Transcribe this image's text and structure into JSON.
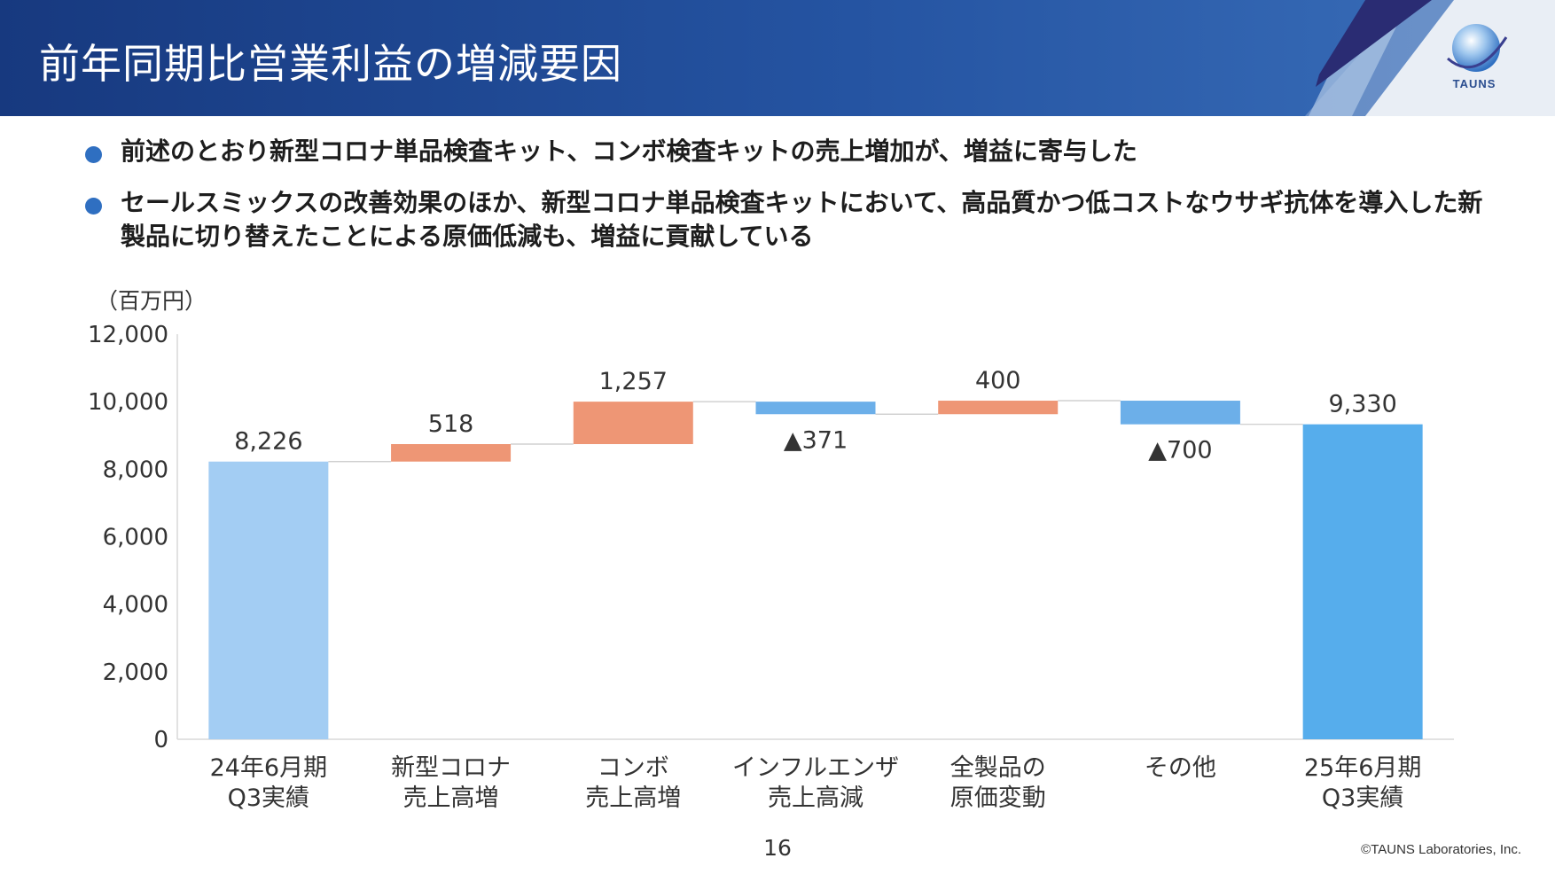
{
  "header": {
    "title": "前年同期比営業利益の増減要因",
    "logo_text": "TAUNS"
  },
  "bullets": [
    "前述のとおり新型コロナ単品検査キット、コンボ検査キットの売上増加が、増益に寄与した",
    "セールスミックスの改善効果のほか、新型コロナ単品検査キットにおいて、高品質かつ低コストなウサギ抗体を導入した新製品に切り替えたことによる原価低減も、増益に貢献している"
  ],
  "colors": {
    "header_start": "#17397f",
    "header_end": "#3a6fba",
    "bullet": "#2f6fc1",
    "start_total": "#a3cdf3",
    "increase": "#ee9675",
    "decrease": "#6cafe9",
    "end_total": "#56adec"
  },
  "chart_data": {
    "type": "waterfall",
    "unit_label": "（百万円）",
    "ylim": [
      0,
      12000
    ],
    "yticks": [
      0,
      2000,
      4000,
      6000,
      8000,
      10000,
      12000
    ],
    "ytick_labels": [
      "0",
      "2,000",
      "4,000",
      "6,000",
      "8,000",
      "10,000",
      "12,000"
    ],
    "categories": [
      [
        "24年6月期",
        "Q3実績"
      ],
      [
        "新型コロナ",
        "売上高増"
      ],
      [
        "コンボ",
        "売上高増"
      ],
      [
        "インフルエンザ",
        "売上高減"
      ],
      [
        "全製品の",
        "原価変動"
      ],
      [
        "その他"
      ],
      [
        "25年6月期",
        "Q3実績"
      ]
    ],
    "values": [
      8226,
      518,
      1257,
      -371,
      400,
      -700,
      9330
    ],
    "kinds": [
      "total",
      "increase",
      "increase",
      "decrease",
      "increase",
      "decrease",
      "total"
    ],
    "labels": [
      "8,226",
      "518",
      "1,257",
      "▲371",
      "400",
      "▲700",
      "9,330"
    ]
  },
  "footer": {
    "page_number": "16",
    "copyright": "©TAUNS Laboratories, Inc."
  }
}
